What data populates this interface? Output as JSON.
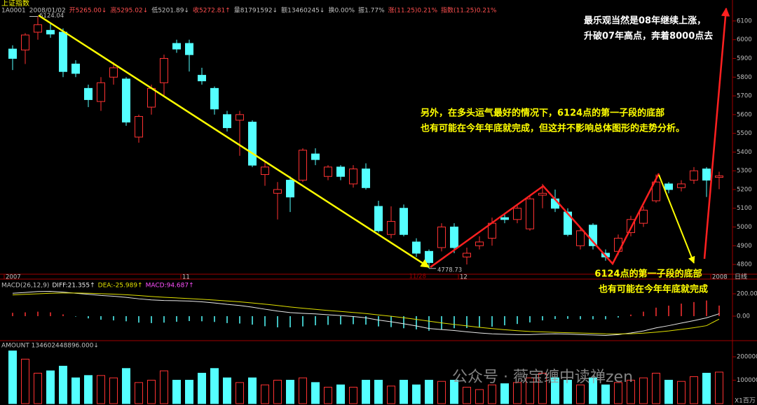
{
  "chart_data": [
    {
      "type": "candlestick",
      "title": "上证指数",
      "header": [
        {
          "text": "1A0001",
          "color": "#c0c0c0"
        },
        {
          "text": "2008/01/02",
          "color": "#c0c0c0"
        },
        {
          "text": "开5265.00↓",
          "color": "#ff5050"
        },
        {
          "text": "高5295.02↓",
          "color": "#ff5050"
        },
        {
          "text": "低5201.89↓",
          "color": "#c0c0c0"
        },
        {
          "text": "收5272.81↑",
          "color": "#ff5050"
        },
        {
          "text": "量81791592↓",
          "color": "#c0c0c0"
        },
        {
          "text": "额13460245↓",
          "color": "#c0c0c0"
        },
        {
          "text": "换0.00%",
          "color": "#c0c0c0"
        },
        {
          "text": "振1.77%",
          "color": "#c0c0c0"
        },
        {
          "text": "涨(11.25)0.21%",
          "color": "#ff5050"
        },
        {
          "text": "指数(11.25)0.21%",
          "color": "#ff5050"
        }
      ],
      "categories": [
        "2007",
        null,
        null,
        null,
        null,
        null,
        null,
        null,
        null,
        null,
        null,
        null,
        null,
        null,
        "11",
        null,
        null,
        null,
        null,
        null,
        null,
        null,
        null,
        null,
        null,
        null,
        null,
        null,
        null,
        null,
        null,
        null,
        null,
        null,
        null,
        null,
        "12",
        null,
        null,
        null,
        null,
        null,
        null,
        null,
        null,
        null,
        null,
        null,
        null,
        null,
        null,
        null,
        null,
        null,
        null,
        null,
        "2008"
      ],
      "open": [
        5950,
        5945,
        6040,
        6050,
        6040,
        5870,
        5740,
        5670,
        5800,
        5790,
        5480,
        5640,
        5770,
        5980,
        5980,
        5810,
        5740,
        5600,
        5570,
        5560,
        5280,
        5180,
        5250,
        5250,
        5390,
        5270,
        5320,
        5230,
        5310,
        5110,
        4960,
        5100,
        4920,
        4870,
        4890,
        5000,
        4840,
        4900,
        4940,
        5050,
        5040,
        4990,
        5170,
        5150,
        5080,
        4900,
        5010,
        4860,
        4870,
        4970,
        5020,
        5140,
        5230,
        5210,
        5250,
        5310,
        5265
      ],
      "high": [
        5970,
        6035,
        6124.04,
        6090,
        6060,
        5890,
        5760,
        5800,
        5880,
        5800,
        5600,
        5760,
        5920,
        6000,
        6000,
        5850,
        5750,
        5620,
        5620,
        5570,
        5350,
        5240,
        5270,
        5420,
        5420,
        5330,
        5330,
        5330,
        5340,
        5140,
        5110,
        5120,
        4940,
        4880,
        5020,
        5020,
        4890,
        4950,
        5050,
        5070,
        5120,
        5170,
        5230,
        5200,
        5100,
        5000,
        5020,
        4880,
        4960,
        5060,
        5110,
        5280,
        5240,
        5250,
        5320,
        5320,
        5295.02
      ],
      "low": [
        5838,
        5870,
        6000,
        6010,
        5800,
        5800,
        5640,
        5620,
        5760,
        5540,
        5450,
        5600,
        5700,
        5930,
        5830,
        5760,
        5600,
        5510,
        5380,
        5320,
        5220,
        5040,
        5080,
        5240,
        5330,
        5250,
        5250,
        5210,
        5200,
        4970,
        4940,
        4950,
        4840,
        4778.73,
        4870,
        4860,
        4800,
        4880,
        4900,
        5020,
        5020,
        4980,
        5100,
        5080,
        4950,
        4880,
        4880,
        4820,
        4850,
        4950,
        5000,
        5130,
        5180,
        5190,
        5230,
        5160,
        5201.89
      ],
      "close": [
        5900,
        6025,
        6080,
        6030,
        5830,
        5820,
        5680,
        5770,
        5850,
        5560,
        5590,
        5740,
        5900,
        5950,
        5920,
        5780,
        5630,
        5530,
        5600,
        5330,
        5320,
        5200,
        5160,
        5410,
        5360,
        5320,
        5270,
        5310,
        5210,
        4980,
        5030,
        4960,
        4860,
        4810,
        5000,
        4890,
        4860,
        4920,
        5020,
        5040,
        5100,
        5150,
        5180,
        5100,
        4960,
        4980,
        4900,
        4840,
        4940,
        5040,
        5090,
        5240,
        5200,
        5230,
        5300,
        5250,
        5272.81
      ],
      "up_color": "#ff3232",
      "down_color": "#54ffff",
      "ylim": [
        4748,
        6167
      ],
      "yticks": [
        4800,
        4900,
        5000,
        5100,
        5200,
        5300,
        5400,
        5500,
        5600,
        5700,
        5800,
        5900,
        6000,
        6100
      ],
      "period_label": "日线",
      "low_date_label": "11/28"
    },
    {
      "type": "macd",
      "title": "MACD(26,12,9)",
      "series": [
        {
          "name": "DIFF:21.355↑",
          "color": "#e8e8e8",
          "values": [
            205,
            212,
            220,
            222,
            215,
            205,
            195,
            185,
            178,
            168,
            155,
            145,
            140,
            138,
            135,
            128,
            118,
            105,
            95,
            80,
            62,
            45,
            32,
            25,
            20,
            12,
            5,
            -3,
            -15,
            -35,
            -50,
            -68,
            -88,
            -110,
            -120,
            -128,
            -140,
            -150,
            -158,
            -162,
            -165,
            -165,
            -160,
            -158,
            -160,
            -165,
            -168,
            -172,
            -165,
            -150,
            -132,
            -105,
            -85,
            -62,
            -40,
            -15,
            21.355
          ]
        },
        {
          "name": "DEA:-25.989↑",
          "color": "#e0e000",
          "values": [
            190,
            195,
            200,
            205,
            207,
            207,
            205,
            201,
            197,
            191,
            184,
            176,
            169,
            163,
            157,
            151,
            144,
            136,
            128,
            118,
            107,
            95,
            82,
            71,
            61,
            51,
            42,
            33,
            23,
            11,
            -1,
            -14,
            -29,
            -45,
            -60,
            -74,
            -87,
            -100,
            -111,
            -121,
            -130,
            -137,
            -141,
            -145,
            -148,
            -151,
            -154,
            -158,
            -159,
            -157,
            -152,
            -143,
            -132,
            -118,
            -103,
            -85,
            -25.989
          ]
        }
      ],
      "bars": {
        "name": "MACD:94.687↑",
        "color": "#ff50ff",
        "up_color": "#ff3232",
        "down_color": "#54ffff",
        "values": [
          30,
          34,
          40,
          34,
          16,
          -4,
          -20,
          -32,
          -38,
          -46,
          -58,
          -62,
          -58,
          -50,
          -44,
          -46,
          -52,
          -62,
          -66,
          -76,
          -90,
          -100,
          -100,
          -92,
          -82,
          -78,
          -74,
          -72,
          -76,
          -92,
          -98,
          -108,
          -118,
          -130,
          -120,
          -108,
          -106,
          -100,
          -94,
          -82,
          -70,
          -56,
          -38,
          -26,
          -24,
          -28,
          -28,
          -28,
          -12,
          14,
          40,
          76,
          94,
          112,
          126,
          140,
          94.687
        ]
      },
      "ylim": [
        -219,
        325
      ],
      "yticks": [
        {
          "value": 0,
          "label": "0.00"
        },
        {
          "value": 200,
          "label": "200.00"
        }
      ]
    },
    {
      "type": "volume",
      "title": "AMOUNT 134602448896.000↓",
      "values": [
        225000,
        190000,
        130000,
        140000,
        160000,
        110000,
        120000,
        120000,
        110000,
        150000,
        90000,
        100000,
        140000,
        100000,
        100000,
        130000,
        150000,
        110000,
        90000,
        110000,
        80000,
        100000,
        100000,
        110000,
        90000,
        70000,
        80000,
        70000,
        100000,
        100000,
        75000,
        100000,
        80000,
        100000,
        95000,
        100000,
        70000,
        60000,
        80000,
        85000,
        90000,
        110000,
        130000,
        110000,
        100000,
        80000,
        110000,
        80000,
        90000,
        100000,
        110000,
        130000,
        100000,
        95000,
        115000,
        130000,
        134602
      ],
      "ylim": [
        0,
        260000
      ],
      "yticks": [
        100000,
        200000
      ],
      "unit_label": "X1百万"
    }
  ],
  "callouts": {
    "optimistic": [
      "最乐观当然是08年继续上涨，",
      "升破07年高点，奔着8000点去"
    ],
    "alternative": [
      "另外，在多头运气最好的情况下，6124点的第一子段的底部",
      "也有可能在今年年底就完成，但这并不影响总体图形的走势分析。"
    ],
    "bottom": [
      "6124点的第一子段的底部",
      "也有可能在今年年底就完成"
    ],
    "watermark": "公众号 · 薇宝缠中读禅zen"
  }
}
